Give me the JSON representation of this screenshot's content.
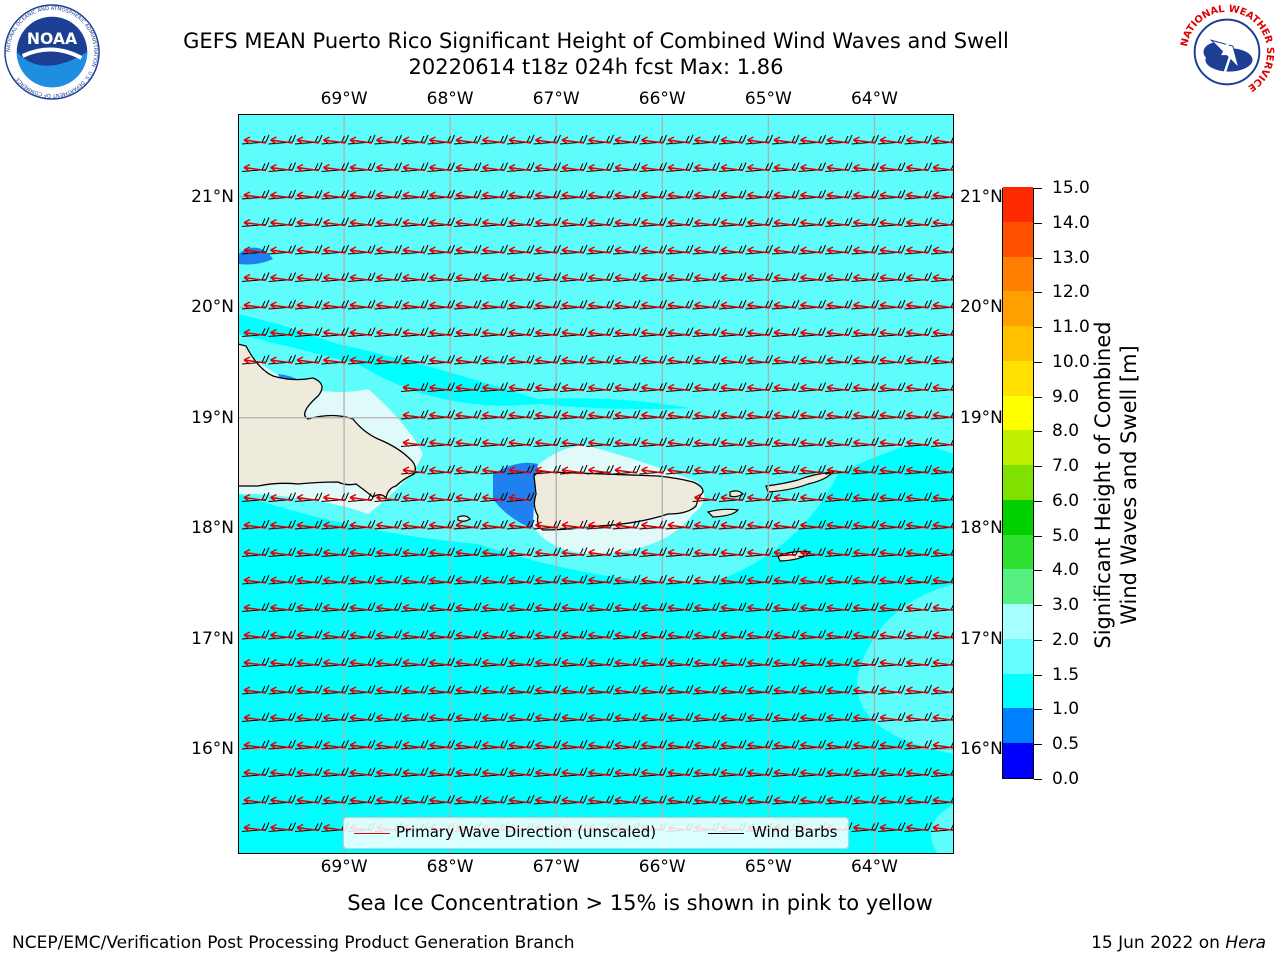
{
  "header": {
    "title_line1": "GEFS MEAN Puerto Rico Significant Height of Combined Wind Waves and Swell",
    "title_line2": "20220614 t18z 024h fcst   Max: 1.86"
  },
  "logos": {
    "left": {
      "name": "noaa-logo",
      "text": "NOAA",
      "ring_text": "NATIONAL OCEANIC AND ATMOSPHERIC ADMINISTRATION · U.S. DEPARTMENT OF COMMERCE"
    },
    "right": {
      "name": "nws-logo",
      "ring_text": "NATIONAL WEATHER SERVICE"
    }
  },
  "map": {
    "lon_ticks": [
      "69°W",
      "68°W",
      "67°W",
      "66°W",
      "65°W",
      "64°W"
    ],
    "lat_ticks": [
      "21°N",
      "20°N",
      "19°N",
      "18°N",
      "17°N",
      "16°N"
    ],
    "lon_values": [
      -69,
      -68,
      -67,
      -66,
      -65,
      -64
    ],
    "lat_values": [
      21,
      20,
      19,
      18,
      17,
      16
    ],
    "extent": {
      "lon_min": -70,
      "lon_max": -63.25,
      "lat_min": 15.05,
      "lat_max": 21.75
    },
    "colors": {
      "ocean": "#00ffff",
      "ocean_light": "#5ffcfc",
      "ocean_pale": "#a0f8f8",
      "land": "#eeeadc",
      "grid": "#b0b0b0",
      "wave_arrow": "#e00000",
      "wind_barb": "#000000",
      "low_wave": "#0a64ff"
    }
  },
  "legend": {
    "wave_label": "Primary Wave Direction (unscaled)",
    "barb_label": "Wind Barbs"
  },
  "colorbar": {
    "title_line1": "Significant Height of Combined",
    "title_line2": "Wind Waves and Swell [m]",
    "labels": [
      "15.0",
      "14.0",
      "13.0",
      "12.0",
      "11.0",
      "10.0",
      "9.0",
      "8.0",
      "7.0",
      "6.0",
      "5.0",
      "4.0",
      "3.0",
      "2.0",
      "1.5",
      "1.0",
      "0.5",
      "0.0"
    ],
    "bounds": [
      0,
      0.5,
      1,
      1.5,
      2,
      3,
      4,
      5,
      6,
      7,
      8,
      9,
      10,
      11,
      12,
      13,
      14,
      15
    ],
    "colors": [
      "#0000ff",
      "#0080ff",
      "#00ffff",
      "#66ffff",
      "#a8ffff",
      "#55f080",
      "#2fe030",
      "#00d000",
      "#80e000",
      "#c0f000",
      "#ffff00",
      "#ffe000",
      "#ffc000",
      "#ffa000",
      "#ff7f00",
      "#ff5000",
      "#ff2800",
      "#ff0000"
    ]
  },
  "footer": {
    "ice_note": "Sea Ice Concentration > 15% is shown in pink to yellow",
    "left": "NCEP/EMC/Verification Post Processing Product Generation Branch",
    "right_date": "15 Jun 2022 on ",
    "right_host": "Hera"
  }
}
